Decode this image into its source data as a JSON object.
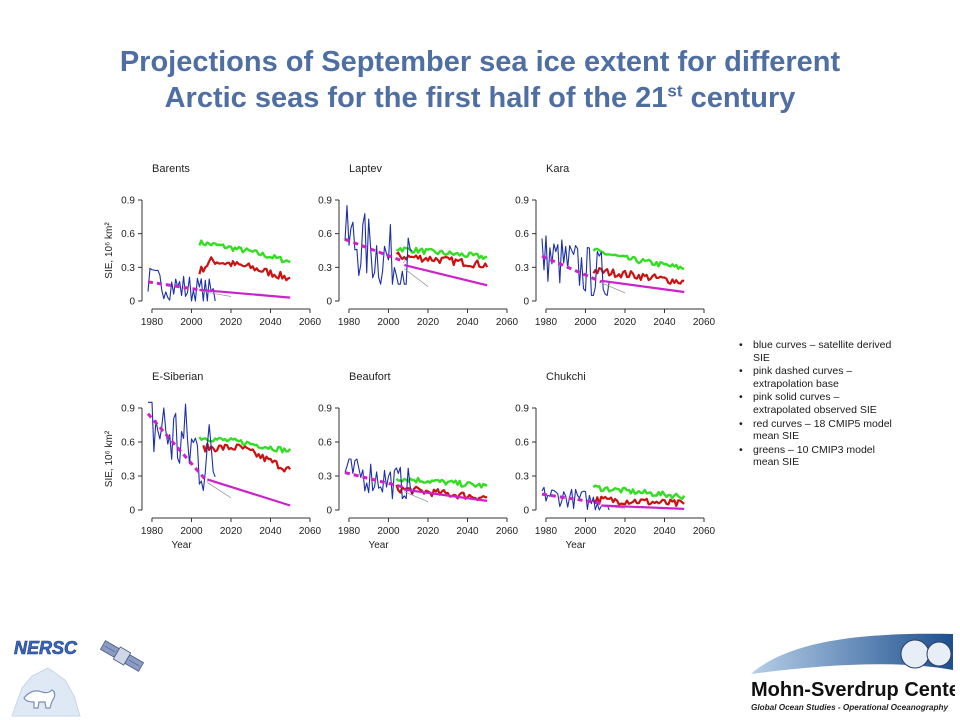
{
  "slide": {
    "title_line1": "Projections of September sea ice extent for different",
    "title_line2_prefix": "Arctic seas for the first half of the 21",
    "title_line2_sup": "st",
    "title_line2_suffix": " century"
  },
  "legend": {
    "items": [
      "blue curves – satellite derived SIE",
      "pink dashed curves – extrapolation base",
      "pink solid curves – extrapolated observed SIE",
      "red curves – 18 CMIP5 model mean SIE",
      "greens – 10 CMIP3 model mean SIE"
    ],
    "bullet": "•"
  },
  "logos": {
    "left_text": "NERSC",
    "right_line1": "Mohn-Sverdrup Center",
    "right_line2": "Global Ocean Studies - Operational Oceanography"
  },
  "colors": {
    "title": "#4f6fa3",
    "satellite": "#1c2fa8",
    "extrapolation": "#cc22cc",
    "cmip5": "#cc1111",
    "cmip3": "#33dd22",
    "gray": "#999999"
  },
  "chart_data": [
    {
      "type": "line",
      "title": "Barents",
      "xlabel": "",
      "ylabel": "SIE, 10^6 km^2",
      "xlim": [
        1978,
        2060
      ],
      "ylim": [
        0,
        0.9
      ],
      "xticks": [
        1980,
        2000,
        2020,
        2040,
        2060
      ],
      "yticks": [
        0,
        0.3,
        0.6,
        0.9
      ],
      "satellite_range": [
        0.0,
        0.3
      ],
      "satellite_level": 0.12,
      "base": [
        [
          1978,
          0.17
        ],
        [
          2004,
          0.1
        ]
      ],
      "extrapolated": [
        [
          2004,
          0.1
        ],
        [
          2050,
          0.03
        ]
      ],
      "cmip5": [
        [
          2004,
          0.26
        ],
        [
          2010,
          0.36
        ],
        [
          2030,
          0.3
        ],
        [
          2050,
          0.2
        ]
      ],
      "cmip3": [
        [
          2004,
          0.52
        ],
        [
          2012,
          0.5
        ],
        [
          2030,
          0.44
        ],
        [
          2050,
          0.35
        ]
      ]
    },
    {
      "type": "line",
      "title": "Laptev",
      "xlabel": "",
      "ylabel": "",
      "xlim": [
        1978,
        2060
      ],
      "ylim": [
        0,
        0.9
      ],
      "xticks": [
        1980,
        2000,
        2020,
        2040,
        2060
      ],
      "yticks": [
        0,
        0.3,
        0.6,
        0.9
      ],
      "satellite_range": [
        0.15,
        0.85
      ],
      "satellite_level": 0.42,
      "base": [
        [
          1978,
          0.55
        ],
        [
          2008,
          0.35
        ]
      ],
      "extrapolated": [
        [
          2008,
          0.32
        ],
        [
          2050,
          0.14
        ]
      ],
      "cmip5": [
        [
          2004,
          0.4
        ],
        [
          2020,
          0.38
        ],
        [
          2050,
          0.32
        ]
      ],
      "cmip3": [
        [
          2004,
          0.47
        ],
        [
          2020,
          0.44
        ],
        [
          2050,
          0.39
        ]
      ]
    },
    {
      "type": "line",
      "title": "Kara",
      "xlabel": "",
      "ylabel": "",
      "xlim": [
        1978,
        2060
      ],
      "ylim": [
        0,
        0.9
      ],
      "xticks": [
        1980,
        2000,
        2020,
        2040,
        2060
      ],
      "yticks": [
        0,
        0.3,
        0.6,
        0.9
      ],
      "satellite_range": [
        0.05,
        0.58
      ],
      "satellite_level": 0.3,
      "base": [
        [
          1978,
          0.4
        ],
        [
          2008,
          0.17
        ]
      ],
      "extrapolated": [
        [
          2008,
          0.18
        ],
        [
          2050,
          0.08
        ]
      ],
      "cmip5": [
        [
          2004,
          0.27
        ],
        [
          2020,
          0.24
        ],
        [
          2050,
          0.17
        ]
      ],
      "cmip3": [
        [
          2004,
          0.45
        ],
        [
          2020,
          0.38
        ],
        [
          2050,
          0.29
        ]
      ]
    },
    {
      "type": "line",
      "title": "E-Siberian",
      "xlabel": "Year",
      "ylabel": "SIE, 10^6 km^2",
      "xlim": [
        1978,
        2060
      ],
      "ylim": [
        0,
        0.9
      ],
      "xticks": [
        1980,
        2000,
        2020,
        2040,
        2060
      ],
      "yticks": [
        0,
        0.3,
        0.6,
        0.9
      ],
      "satellite_range": [
        0.05,
        0.95
      ],
      "satellite_level": 0.6,
      "base": [
        [
          1978,
          0.85
        ],
        [
          2008,
          0.25
        ]
      ],
      "extrapolated": [
        [
          2008,
          0.27
        ],
        [
          2050,
          0.04
        ]
      ],
      "cmip5": [
        [
          2006,
          0.55
        ],
        [
          2025,
          0.55
        ],
        [
          2050,
          0.35
        ]
      ],
      "cmip3": [
        [
          2004,
          0.64
        ],
        [
          2025,
          0.6
        ],
        [
          2050,
          0.52
        ]
      ]
    },
    {
      "type": "line",
      "title": "Beaufort",
      "xlabel": "Year",
      "ylabel": "",
      "xlim": [
        1978,
        2060
      ],
      "ylim": [
        0,
        0.9
      ],
      "xticks": [
        1980,
        2000,
        2020,
        2040,
        2060
      ],
      "yticks": [
        0,
        0.3,
        0.6,
        0.9
      ],
      "satellite_range": [
        0.1,
        0.45
      ],
      "satellite_level": 0.28,
      "base": [
        [
          1978,
          0.33
        ],
        [
          2008,
          0.2
        ]
      ],
      "extrapolated": [
        [
          2008,
          0.18
        ],
        [
          2050,
          0.08
        ]
      ],
      "cmip5": [
        [
          2004,
          0.19
        ],
        [
          2025,
          0.15
        ],
        [
          2050,
          0.11
        ]
      ],
      "cmip3": [
        [
          2004,
          0.28
        ],
        [
          2025,
          0.25
        ],
        [
          2050,
          0.21
        ]
      ]
    },
    {
      "type": "line",
      "title": "Chukchi",
      "xlabel": "Year",
      "ylabel": "",
      "xlim": [
        1978,
        2060
      ],
      "ylim": [
        0,
        0.9
      ],
      "xticks": [
        1980,
        2000,
        2020,
        2040,
        2060
      ],
      "yticks": [
        0,
        0.3,
        0.6,
        0.9
      ],
      "satellite_range": [
        0.0,
        0.2
      ],
      "satellite_level": 0.1,
      "base": [
        [
          1978,
          0.14
        ],
        [
          2008,
          0.06
        ]
      ],
      "extrapolated": [
        [
          2008,
          0.04
        ],
        [
          2050,
          0.01
        ]
      ],
      "cmip5": [
        [
          2004,
          0.09
        ],
        [
          2025,
          0.08
        ],
        [
          2050,
          0.05
        ]
      ],
      "cmip3": [
        [
          2004,
          0.2
        ],
        [
          2025,
          0.16
        ],
        [
          2050,
          0.12
        ]
      ]
    }
  ]
}
